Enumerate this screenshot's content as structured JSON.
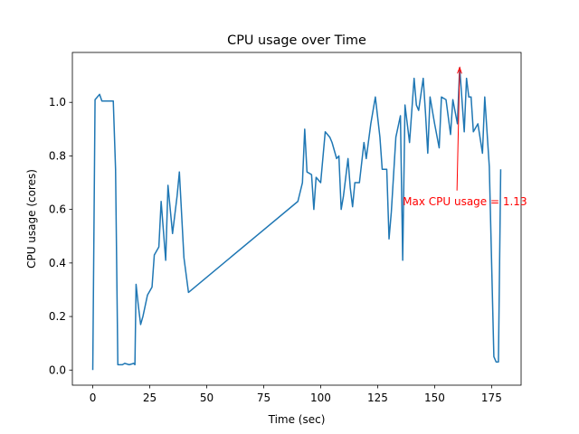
{
  "chart_data": {
    "type": "line",
    "title": "CPU usage over Time",
    "xlabel": "Time (sec)",
    "ylabel": "CPU usage (cores)",
    "x": [
      0,
      1,
      3,
      4,
      6,
      8,
      9,
      10,
      11,
      13,
      14,
      16,
      18,
      18.5,
      19,
      20,
      21,
      22,
      24,
      26,
      27,
      29,
      30,
      32,
      33,
      35,
      37,
      38,
      40,
      42,
      90,
      92,
      93,
      94,
      96,
      97,
      98,
      100,
      102,
      104,
      105,
      107,
      108,
      109,
      110,
      112,
      113,
      114,
      115,
      117,
      119,
      120,
      122,
      124,
      126,
      127,
      129,
      130,
      131,
      133,
      135,
      136,
      137,
      139,
      141,
      142,
      143,
      145,
      146,
      147,
      148,
      150,
      152,
      153,
      155,
      157,
      158,
      160,
      161,
      163,
      164,
      165,
      166,
      167,
      169,
      171,
      172,
      174,
      176,
      177,
      178,
      179
    ],
    "series": [
      {
        "name": "CPU usage",
        "color": "#1f77b4",
        "values": [
          0.0,
          1.01,
          1.03,
          1.005,
          1.005,
          1.005,
          1.005,
          0.75,
          0.02,
          0.02,
          0.025,
          0.02,
          0.025,
          0.02,
          0.32,
          0.24,
          0.17,
          0.2,
          0.28,
          0.31,
          0.43,
          0.46,
          0.63,
          0.41,
          0.69,
          0.51,
          0.65,
          0.74,
          0.42,
          0.29,
          0.63,
          0.7,
          0.9,
          0.74,
          0.73,
          0.6,
          0.72,
          0.7,
          0.89,
          0.87,
          0.85,
          0.79,
          0.8,
          0.6,
          0.65,
          0.79,
          0.68,
          0.61,
          0.7,
          0.7,
          0.85,
          0.79,
          0.92,
          1.02,
          0.87,
          0.75,
          0.75,
          0.49,
          0.59,
          0.87,
          0.95,
          0.41,
          0.99,
          0.85,
          1.09,
          0.99,
          0.97,
          1.09,
          0.96,
          0.81,
          1.02,
          0.92,
          0.83,
          1.02,
          1.01,
          0.88,
          1.01,
          0.92,
          1.13,
          0.89,
          1.09,
          1.02,
          1.02,
          0.89,
          0.92,
          0.81,
          1.02,
          0.76,
          0.05,
          0.03,
          0.03,
          0.75
        ]
      }
    ],
    "xlim": [
      -8.95,
      187.95
    ],
    "ylim": [
      -0.0565,
      1.1865
    ],
    "xticks": [
      0,
      25,
      50,
      75,
      100,
      125,
      150,
      175
    ],
    "yticks": [
      {
        "value": 0,
        "label": "0.0"
      },
      {
        "value": 0.2,
        "label": "0.2"
      },
      {
        "value": 0.4,
        "label": "0.4"
      },
      {
        "value": 0.6,
        "label": "0.6"
      },
      {
        "value": 0.8,
        "label": "0.8"
      },
      {
        "value": 1,
        "label": "1.0"
      }
    ],
    "annotation": {
      "text": "Max CPU usage = 1.13",
      "xy": [
        161,
        1.13
      ],
      "xytext": [
        136,
        0.63
      ],
      "color": "red"
    }
  }
}
